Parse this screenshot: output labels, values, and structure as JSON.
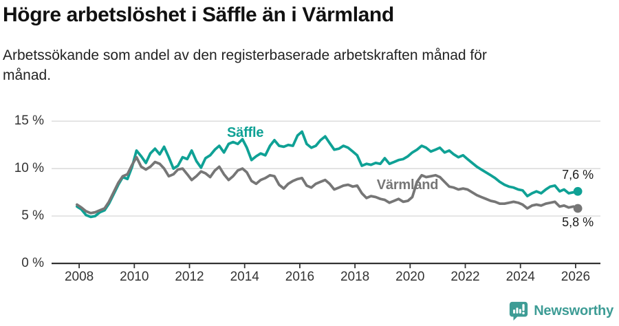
{
  "chart_data": {
    "type": "line",
    "title": "Högre arbetslöshet i Säffle än i Värmland",
    "subtitle": "Arbetssökande som andel av den registerbaserade arbetskraften månad för\nmånad.",
    "xlim": [
      2007.0,
      2026.9
    ],
    "ylim": [
      0,
      16.9
    ],
    "grid": "horizontal-only",
    "legend_position": "inline-labels",
    "x_ticks": [
      {
        "v": 2008,
        "label": "2008"
      },
      {
        "v": 2010,
        "label": "2010"
      },
      {
        "v": 2012,
        "label": "2012"
      },
      {
        "v": 2014,
        "label": "2014"
      },
      {
        "v": 2016,
        "label": "2016"
      },
      {
        "v": 2018,
        "label": "2018"
      },
      {
        "v": 2020,
        "label": "2020"
      },
      {
        "v": 2022,
        "label": "2022"
      },
      {
        "v": 2024,
        "label": "2024"
      },
      {
        "v": 2026,
        "label": "2026"
      }
    ],
    "y_ticks": [
      {
        "v": 0,
        "label": "0 %"
      },
      {
        "v": 5,
        "label": "5 %"
      },
      {
        "v": 10,
        "label": "10 %"
      },
      {
        "v": 15,
        "label": "15 %"
      }
    ],
    "series": [
      {
        "id": "saffle",
        "name": "Säffle",
        "color": "#0FA195",
        "end_label": "7,6 %",
        "end_label_side": "above",
        "label_pos": [
          2013.36,
          14.5
        ],
        "points": [
          [
            2007.92,
            6.0
          ],
          [
            2008.08,
            5.7
          ],
          [
            2008.25,
            5.1
          ],
          [
            2008.42,
            4.9
          ],
          [
            2008.58,
            5.0
          ],
          [
            2008.75,
            5.4
          ],
          [
            2008.92,
            5.6
          ],
          [
            2009.08,
            6.3
          ],
          [
            2009.25,
            7.3
          ],
          [
            2009.42,
            8.3
          ],
          [
            2009.58,
            9.1
          ],
          [
            2009.75,
            8.9
          ],
          [
            2009.92,
            10.2
          ],
          [
            2010.08,
            11.9
          ],
          [
            2010.25,
            11.3
          ],
          [
            2010.42,
            10.6
          ],
          [
            2010.58,
            11.6
          ],
          [
            2010.75,
            12.1
          ],
          [
            2010.92,
            11.5
          ],
          [
            2011.08,
            12.3
          ],
          [
            2011.25,
            11.2
          ],
          [
            2011.42,
            10.0
          ],
          [
            2011.58,
            10.3
          ],
          [
            2011.75,
            11.2
          ],
          [
            2011.92,
            11.0
          ],
          [
            2012.08,
            11.9
          ],
          [
            2012.25,
            10.8
          ],
          [
            2012.42,
            10.1
          ],
          [
            2012.58,
            11.1
          ],
          [
            2012.75,
            11.4
          ],
          [
            2012.92,
            12.0
          ],
          [
            2013.08,
            12.4
          ],
          [
            2013.25,
            11.7
          ],
          [
            2013.42,
            12.6
          ],
          [
            2013.58,
            12.8
          ],
          [
            2013.75,
            12.6
          ],
          [
            2013.92,
            13.1
          ],
          [
            2014.08,
            12.2
          ],
          [
            2014.25,
            10.9
          ],
          [
            2014.42,
            11.3
          ],
          [
            2014.58,
            11.6
          ],
          [
            2014.75,
            11.4
          ],
          [
            2014.92,
            12.4
          ],
          [
            2015.08,
            13.0
          ],
          [
            2015.25,
            12.4
          ],
          [
            2015.42,
            12.3
          ],
          [
            2015.58,
            12.5
          ],
          [
            2015.75,
            12.4
          ],
          [
            2015.92,
            13.5
          ],
          [
            2016.08,
            13.9
          ],
          [
            2016.25,
            12.6
          ],
          [
            2016.42,
            12.2
          ],
          [
            2016.58,
            12.4
          ],
          [
            2016.75,
            13.0
          ],
          [
            2016.92,
            13.4
          ],
          [
            2017.08,
            12.7
          ],
          [
            2017.25,
            12.0
          ],
          [
            2017.42,
            12.1
          ],
          [
            2017.58,
            12.4
          ],
          [
            2017.75,
            12.2
          ],
          [
            2017.92,
            11.8
          ],
          [
            2018.08,
            11.4
          ],
          [
            2018.25,
            10.3
          ],
          [
            2018.42,
            10.5
          ],
          [
            2018.58,
            10.4
          ],
          [
            2018.75,
            10.6
          ],
          [
            2018.92,
            10.5
          ],
          [
            2019.08,
            11.1
          ],
          [
            2019.25,
            10.5
          ],
          [
            2019.42,
            10.7
          ],
          [
            2019.58,
            10.9
          ],
          [
            2019.75,
            11.0
          ],
          [
            2019.92,
            11.3
          ],
          [
            2020.08,
            11.7
          ],
          [
            2020.25,
            12.0
          ],
          [
            2020.42,
            12.4
          ],
          [
            2020.58,
            12.2
          ],
          [
            2020.75,
            11.8
          ],
          [
            2020.92,
            12.0
          ],
          [
            2021.08,
            12.2
          ],
          [
            2021.25,
            11.7
          ],
          [
            2021.42,
            11.9
          ],
          [
            2021.58,
            11.5
          ],
          [
            2021.75,
            11.2
          ],
          [
            2021.92,
            11.4
          ],
          [
            2022.08,
            11.0
          ],
          [
            2022.25,
            10.6
          ],
          [
            2022.42,
            10.2
          ],
          [
            2022.58,
            9.9
          ],
          [
            2022.75,
            9.6
          ],
          [
            2022.92,
            9.3
          ],
          [
            2023.08,
            9.0
          ],
          [
            2023.25,
            8.6
          ],
          [
            2023.42,
            8.3
          ],
          [
            2023.58,
            8.1
          ],
          [
            2023.75,
            8.0
          ],
          [
            2023.92,
            7.8
          ],
          [
            2024.08,
            7.7
          ],
          [
            2024.25,
            7.1
          ],
          [
            2024.42,
            7.4
          ],
          [
            2024.58,
            7.6
          ],
          [
            2024.75,
            7.4
          ],
          [
            2024.92,
            7.8
          ],
          [
            2025.08,
            8.1
          ],
          [
            2025.25,
            8.2
          ],
          [
            2025.42,
            7.6
          ],
          [
            2025.58,
            7.8
          ],
          [
            2025.75,
            7.4
          ],
          [
            2025.92,
            7.5
          ],
          [
            2026.08,
            7.6
          ]
        ]
      },
      {
        "id": "varmland",
        "name": "Värmland",
        "color": "#767676",
        "end_label": "5,8 %",
        "end_label_side": "below",
        "label_pos": [
          2018.79,
          9.0
        ],
        "points": [
          [
            2007.92,
            6.2
          ],
          [
            2008.08,
            5.9
          ],
          [
            2008.25,
            5.5
          ],
          [
            2008.42,
            5.3
          ],
          [
            2008.58,
            5.4
          ],
          [
            2008.75,
            5.6
          ],
          [
            2008.92,
            5.8
          ],
          [
            2009.08,
            6.5
          ],
          [
            2009.25,
            7.5
          ],
          [
            2009.42,
            8.5
          ],
          [
            2009.58,
            9.2
          ],
          [
            2009.75,
            9.4
          ],
          [
            2009.92,
            10.4
          ],
          [
            2010.08,
            11.2
          ],
          [
            2010.25,
            10.2
          ],
          [
            2010.42,
            9.9
          ],
          [
            2010.58,
            10.2
          ],
          [
            2010.75,
            10.7
          ],
          [
            2010.92,
            10.5
          ],
          [
            2011.08,
            10.0
          ],
          [
            2011.25,
            9.2
          ],
          [
            2011.42,
            9.4
          ],
          [
            2011.58,
            9.9
          ],
          [
            2011.75,
            10.0
          ],
          [
            2011.92,
            9.4
          ],
          [
            2012.08,
            8.8
          ],
          [
            2012.25,
            9.2
          ],
          [
            2012.42,
            9.7
          ],
          [
            2012.58,
            9.5
          ],
          [
            2012.75,
            9.1
          ],
          [
            2012.92,
            9.8
          ],
          [
            2013.08,
            10.2
          ],
          [
            2013.25,
            9.4
          ],
          [
            2013.42,
            8.8
          ],
          [
            2013.58,
            9.2
          ],
          [
            2013.75,
            9.8
          ],
          [
            2013.92,
            10.0
          ],
          [
            2014.08,
            9.6
          ],
          [
            2014.25,
            8.7
          ],
          [
            2014.42,
            8.4
          ],
          [
            2014.58,
            8.8
          ],
          [
            2014.75,
            9.0
          ],
          [
            2014.92,
            9.3
          ],
          [
            2015.08,
            9.2
          ],
          [
            2015.25,
            8.3
          ],
          [
            2015.42,
            7.9
          ],
          [
            2015.58,
            8.4
          ],
          [
            2015.75,
            8.7
          ],
          [
            2015.92,
            8.9
          ],
          [
            2016.08,
            9.0
          ],
          [
            2016.25,
            8.2
          ],
          [
            2016.42,
            8.0
          ],
          [
            2016.58,
            8.4
          ],
          [
            2016.75,
            8.6
          ],
          [
            2016.92,
            8.8
          ],
          [
            2017.08,
            8.4
          ],
          [
            2017.25,
            7.8
          ],
          [
            2017.42,
            8.0
          ],
          [
            2017.58,
            8.2
          ],
          [
            2017.75,
            8.3
          ],
          [
            2017.92,
            8.1
          ],
          [
            2018.08,
            8.2
          ],
          [
            2018.25,
            7.4
          ],
          [
            2018.42,
            6.9
          ],
          [
            2018.58,
            7.1
          ],
          [
            2018.75,
            7.0
          ],
          [
            2018.92,
            6.8
          ],
          [
            2019.08,
            6.7
          ],
          [
            2019.25,
            6.4
          ],
          [
            2019.42,
            6.6
          ],
          [
            2019.58,
            6.8
          ],
          [
            2019.75,
            6.5
          ],
          [
            2019.92,
            6.6
          ],
          [
            2020.08,
            7.0
          ],
          [
            2020.25,
            8.6
          ],
          [
            2020.42,
            9.3
          ],
          [
            2020.58,
            9.1
          ],
          [
            2020.75,
            9.2
          ],
          [
            2020.92,
            9.3
          ],
          [
            2021.08,
            9.1
          ],
          [
            2021.25,
            8.6
          ],
          [
            2021.42,
            8.1
          ],
          [
            2021.58,
            8.0
          ],
          [
            2021.75,
            7.8
          ],
          [
            2021.92,
            7.9
          ],
          [
            2022.08,
            7.8
          ],
          [
            2022.25,
            7.5
          ],
          [
            2022.42,
            7.2
          ],
          [
            2022.58,
            7.0
          ],
          [
            2022.75,
            6.8
          ],
          [
            2022.92,
            6.6
          ],
          [
            2023.08,
            6.5
          ],
          [
            2023.25,
            6.3
          ],
          [
            2023.42,
            6.3
          ],
          [
            2023.58,
            6.4
          ],
          [
            2023.75,
            6.5
          ],
          [
            2023.92,
            6.4
          ],
          [
            2024.08,
            6.2
          ],
          [
            2024.25,
            5.8
          ],
          [
            2024.42,
            6.1
          ],
          [
            2024.58,
            6.2
          ],
          [
            2024.75,
            6.1
          ],
          [
            2024.92,
            6.3
          ],
          [
            2025.08,
            6.4
          ],
          [
            2025.25,
            6.5
          ],
          [
            2025.42,
            6.0
          ],
          [
            2025.58,
            6.1
          ],
          [
            2025.75,
            5.9
          ],
          [
            2025.92,
            6.0
          ],
          [
            2026.08,
            5.8
          ]
        ]
      }
    ],
    "colors": {
      "grid": "#DADADA",
      "axis": "#333333",
      "tick_text": "#333333",
      "end_label_text": "#1A1A1A"
    }
  },
  "footer": {
    "brand": "Newsworthy",
    "brand_color": "#3D9C95",
    "logo_icon": "speech-bubble-bar-chart-exclamation"
  }
}
